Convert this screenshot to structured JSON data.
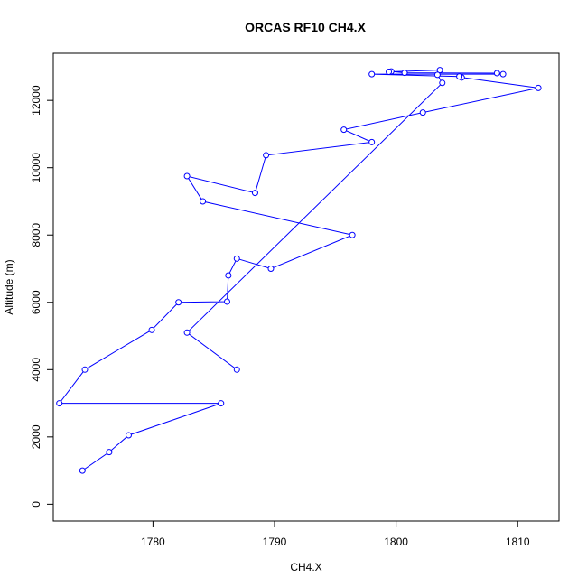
{
  "chart_data": {
    "type": "line",
    "title": "ORCAS RF10 CH4.X",
    "xlabel": "CH4.X",
    "ylabel": "Altitude (m)",
    "xlim": [
      1771.8,
      1813.4
    ],
    "ylim": [
      -500,
      13400
    ],
    "xticks": [
      1780,
      1790,
      1800,
      1810
    ],
    "yticks": [
      0,
      2000,
      4000,
      6000,
      8000,
      10000,
      12000
    ],
    "xtick_labels": [
      "1780",
      "1790",
      "1800",
      "1810"
    ],
    "ytick_labels": [
      "0",
      "2000",
      "4000",
      "6000",
      "8000",
      "10000",
      "12000"
    ],
    "grid": false,
    "series_color": "#0000ff",
    "series": [
      {
        "x": [
          1774.2,
          1776.4,
          1778.0,
          1785.6,
          1772.3,
          1774.4,
          1779.9,
          1782.1,
          1786.1,
          1786.2,
          1786.9,
          1789.7,
          1796.4,
          1784.1,
          1782.8,
          1788.4,
          1789.3,
          1798.0,
          1795.7,
          1802.2,
          1811.7,
          1805.4,
          1805.2,
          1798.0,
          1808.8,
          1808.3,
          1800.7,
          1799.6,
          1799.4,
          1803.6,
          1803.4,
          1803.8,
          1782.8,
          1786.9
        ],
        "y": [
          1000,
          1550,
          2050,
          3000,
          3000,
          4000,
          5180,
          6000,
          6020,
          6800,
          7300,
          7000,
          8000,
          9000,
          9750,
          9250,
          10370,
          10760,
          11130,
          11640,
          12370,
          12680,
          12710,
          12780,
          12780,
          12810,
          12820,
          12860,
          12850,
          12900,
          12760,
          12520,
          5100,
          4000
        ]
      }
    ]
  }
}
